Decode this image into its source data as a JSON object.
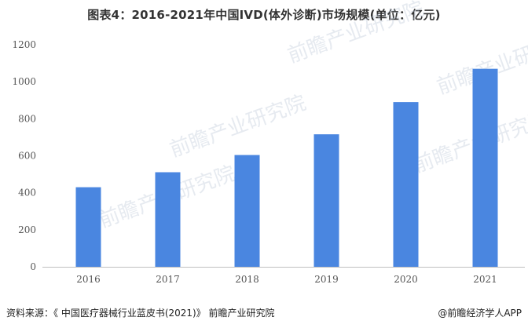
{
  "title": "图表4：2016-2021年中国IVD(体外诊断)市场规模(单位：亿元)",
  "source": "资料来源：《 中国医疗器械行业蓝皮书(2021)》 前瞻产业研究院",
  "credit": "@前瞻经济学人APP",
  "watermark_text": "前瞻产业研究院",
  "colors": {
    "bar": "#4a86e0",
    "axis": "#bfbfbf"
  },
  "chart_data": {
    "type": "bar",
    "categories": [
      "2016",
      "2017",
      "2018",
      "2019",
      "2020",
      "2021"
    ],
    "values": [
      430,
      511,
      604,
      716,
      890,
      1070
    ],
    "title": "图表4：2016-2021年中国IVD(体外诊断)市场规模(单位：亿元)",
    "xlabel": "",
    "ylabel": "",
    "ylim": [
      0,
      1200
    ],
    "yticks": [
      0,
      200,
      400,
      600,
      800,
      1000,
      1200
    ],
    "grid": false,
    "legend": "none"
  }
}
